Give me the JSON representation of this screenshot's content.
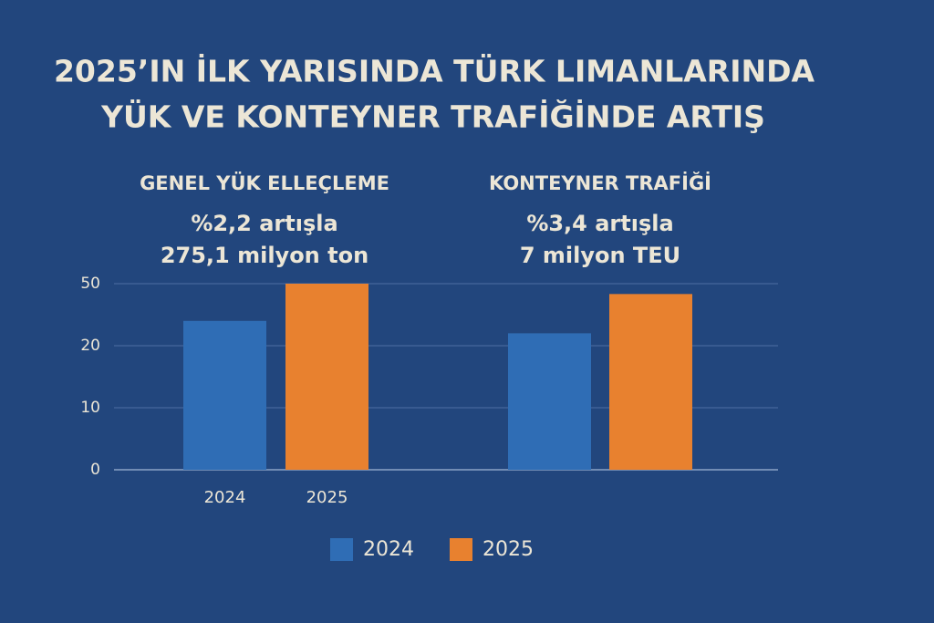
{
  "chart_data": {
    "type": "bar",
    "title": [
      "2025’IN İLK YARISINDA TÜRK LIMANLARINDA",
      "YÜK VE KONTEYNER TRAFİĞİNDE ARTIŞ"
    ],
    "categories": [
      "GENEL YÜK ELLEÇLEME",
      "KONTEYNER TRAFİĞİ"
    ],
    "annotations": [
      [
        "%2,2 artışla",
        "275,1 milyon ton"
      ],
      [
        "%3,4 artışla",
        "7 milyon TEU"
      ]
    ],
    "series": [
      {
        "name": "2024",
        "color": "#2f6db5",
        "values": [
          32,
          26
        ]
      },
      {
        "name": "2025",
        "color": "#e8812f",
        "values": [
          50,
          45
        ]
      }
    ],
    "ylim": [
      0,
      50
    ],
    "yticks": [
      0,
      10,
      20,
      50
    ],
    "grid": true
  }
}
